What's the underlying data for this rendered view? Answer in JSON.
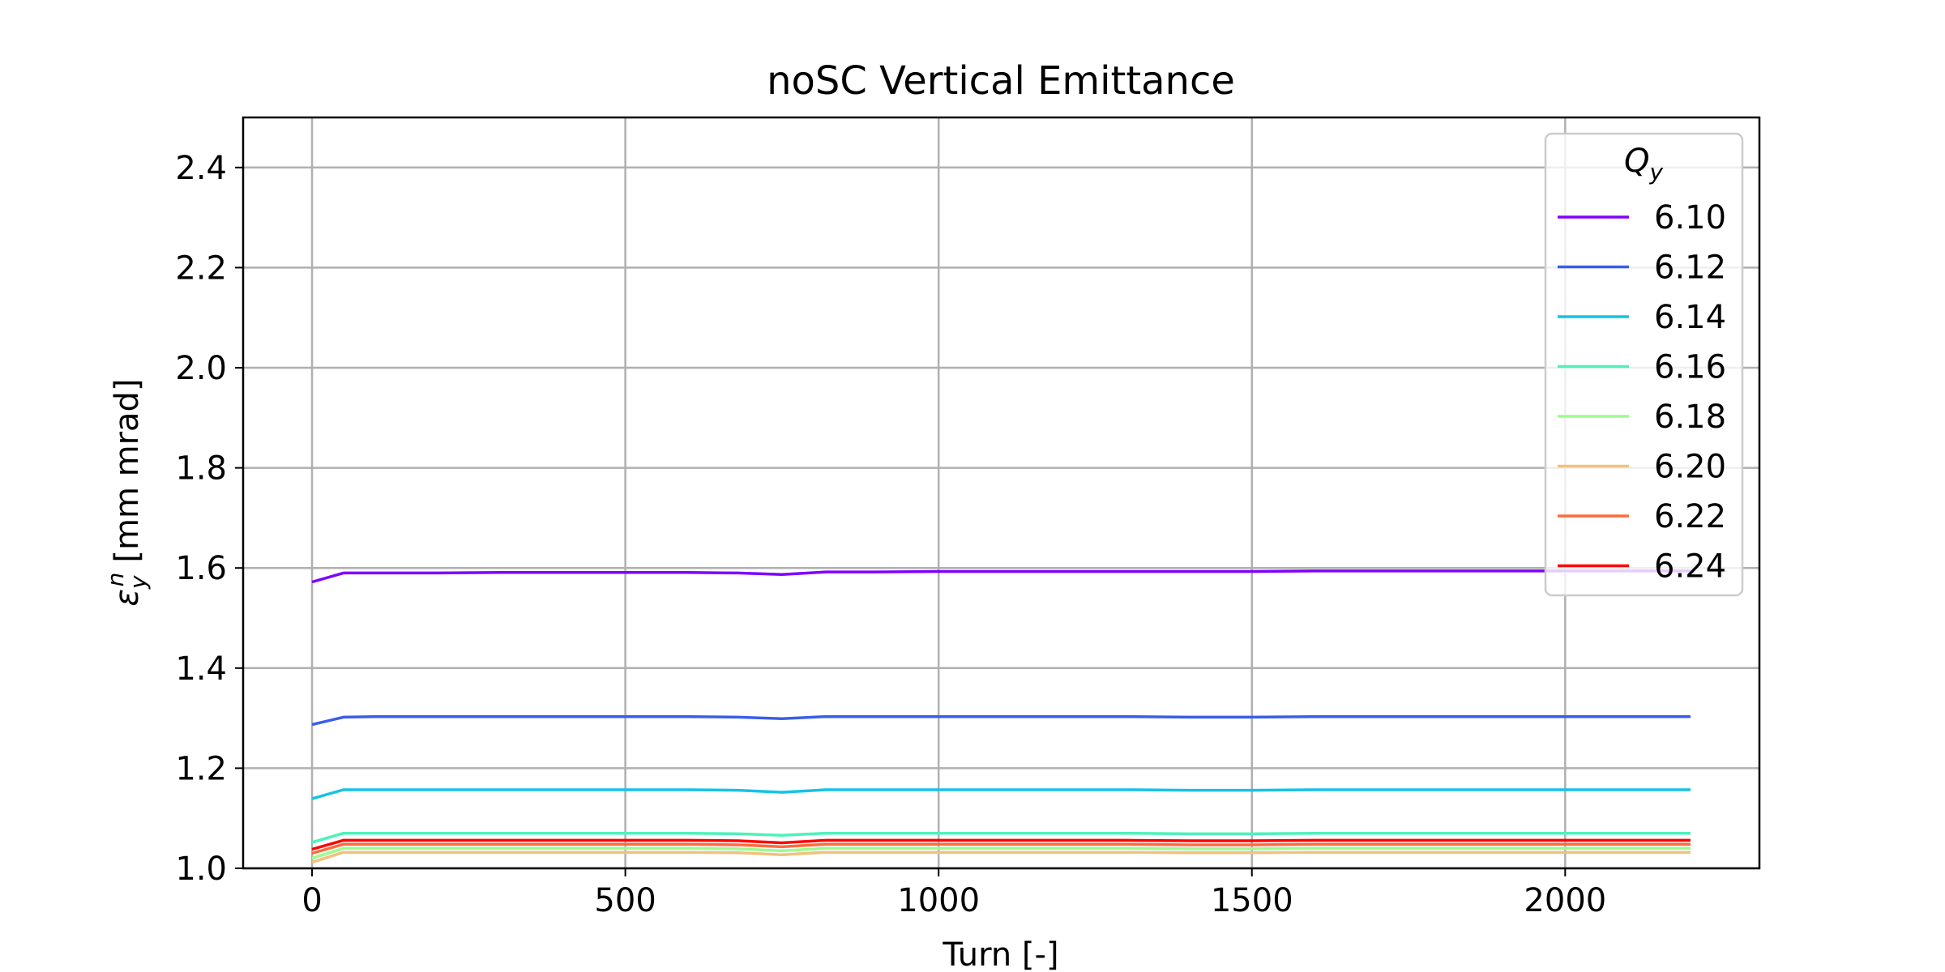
{
  "chart_data": {
    "type": "line",
    "title": "noSC Vertical Emittance",
    "xlabel": "Turn [-]",
    "ylabel": "[mm mrad]",
    "ylabel_symbol": "ε",
    "ylabel_sub": "y",
    "ylabel_sup": "n",
    "xlim": [
      -110,
      2310
    ],
    "ylim": [
      1.0,
      2.5
    ],
    "xticks": [
      0,
      500,
      1000,
      1500,
      2000
    ],
    "yticks": [
      1.0,
      1.2,
      1.4,
      1.6,
      1.8,
      2.0,
      2.2,
      2.4
    ],
    "ytick_labels": [
      "1.0",
      "1.2",
      "1.4",
      "1.6",
      "1.8",
      "2.0",
      "2.2",
      "2.4"
    ],
    "grid": true,
    "legend": {
      "title_symbol": "Q",
      "title_sub": "y",
      "placement": "upper right"
    },
    "x": [
      0,
      50,
      100,
      200,
      300,
      400,
      500,
      600,
      680,
      750,
      820,
      900,
      1000,
      1100,
      1200,
      1300,
      1400,
      1500,
      1600,
      1700,
      1800,
      1900,
      2000,
      2100,
      2200
    ],
    "series": [
      {
        "name": "6.10",
        "color": "#8000ff",
        "values": [
          1.572,
          1.59,
          1.59,
          1.59,
          1.591,
          1.591,
          1.591,
          1.591,
          1.59,
          1.587,
          1.592,
          1.592,
          1.593,
          1.593,
          1.593,
          1.593,
          1.593,
          1.593,
          1.594,
          1.594,
          1.594,
          1.594,
          1.594,
          1.594,
          1.594
        ]
      },
      {
        "name": "6.12",
        "color": "#3a5ee8",
        "values": [
          1.287,
          1.302,
          1.303,
          1.303,
          1.303,
          1.303,
          1.303,
          1.303,
          1.302,
          1.299,
          1.303,
          1.303,
          1.303,
          1.303,
          1.303,
          1.303,
          1.302,
          1.302,
          1.303,
          1.303,
          1.303,
          1.303,
          1.303,
          1.303,
          1.303
        ]
      },
      {
        "name": "6.14",
        "color": "#14c3e6",
        "values": [
          1.139,
          1.157,
          1.157,
          1.157,
          1.157,
          1.157,
          1.157,
          1.157,
          1.156,
          1.152,
          1.157,
          1.157,
          1.157,
          1.157,
          1.157,
          1.157,
          1.156,
          1.156,
          1.157,
          1.157,
          1.157,
          1.157,
          1.157,
          1.157,
          1.157
        ]
      },
      {
        "name": "6.16",
        "color": "#4cf2b9",
        "values": [
          1.052,
          1.07,
          1.07,
          1.07,
          1.07,
          1.07,
          1.07,
          1.07,
          1.069,
          1.066,
          1.07,
          1.07,
          1.07,
          1.07,
          1.07,
          1.07,
          1.069,
          1.069,
          1.07,
          1.07,
          1.07,
          1.07,
          1.07,
          1.07,
          1.07
        ]
      },
      {
        "name": "6.18",
        "color": "#9afc8f",
        "values": [
          1.02,
          1.04,
          1.04,
          1.04,
          1.04,
          1.04,
          1.04,
          1.04,
          1.039,
          1.035,
          1.04,
          1.04,
          1.04,
          1.04,
          1.04,
          1.04,
          1.039,
          1.039,
          1.04,
          1.04,
          1.04,
          1.04,
          1.04,
          1.04,
          1.04
        ]
      },
      {
        "name": "6.20",
        "color": "#f0c27c",
        "values": [
          1.012,
          1.032,
          1.032,
          1.032,
          1.032,
          1.032,
          1.032,
          1.032,
          1.031,
          1.027,
          1.032,
          1.032,
          1.032,
          1.032,
          1.032,
          1.032,
          1.031,
          1.031,
          1.032,
          1.032,
          1.032,
          1.032,
          1.032,
          1.032,
          1.032
        ]
      },
      {
        "name": "6.22",
        "color": "#ff6a3d",
        "values": [
          1.03,
          1.048,
          1.048,
          1.048,
          1.048,
          1.048,
          1.048,
          1.048,
          1.047,
          1.043,
          1.048,
          1.048,
          1.048,
          1.048,
          1.048,
          1.048,
          1.047,
          1.047,
          1.048,
          1.048,
          1.048,
          1.048,
          1.048,
          1.048,
          1.048
        ]
      },
      {
        "name": "6.24",
        "color": "#ff0000",
        "values": [
          1.038,
          1.056,
          1.056,
          1.056,
          1.056,
          1.056,
          1.056,
          1.056,
          1.055,
          1.051,
          1.056,
          1.056,
          1.056,
          1.056,
          1.056,
          1.056,
          1.055,
          1.055,
          1.056,
          1.056,
          1.056,
          1.056,
          1.056,
          1.056,
          1.056
        ]
      }
    ]
  }
}
